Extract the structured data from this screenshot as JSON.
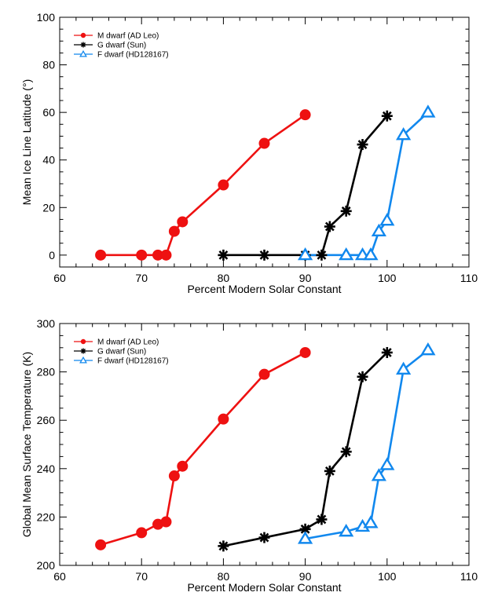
{
  "colors": {
    "m_dwarf": "#ee1111",
    "g_dwarf": "#000000",
    "f_dwarf": "#1188ee"
  },
  "chart_data": [
    {
      "type": "line",
      "title": "",
      "xlabel": "Percent Modern Solar Constant",
      "ylabel": "Mean Ice Line Latitude (°)",
      "xlim": [
        60,
        110
      ],
      "ylim": [
        -5,
        100
      ],
      "xticks": [
        60,
        70,
        80,
        90,
        100,
        110
      ],
      "yticks": [
        0,
        20,
        40,
        60,
        80,
        100
      ],
      "legend_position": "top-left",
      "grid": false,
      "series": [
        {
          "name": "M dwarf (AD Leo)",
          "marker": "circle",
          "color": "#ee1111",
          "x": [
            65,
            70,
            72,
            73,
            74,
            75,
            80,
            85,
            90
          ],
          "y": [
            0,
            0,
            0,
            0,
            10,
            14,
            29.5,
            47,
            59
          ]
        },
        {
          "name": "G dwarf (Sun)",
          "marker": "asterisk",
          "color": "#000000",
          "x": [
            80,
            85,
            90,
            92,
            93,
            95,
            97,
            100
          ],
          "y": [
            0,
            0,
            0,
            0,
            12,
            18.5,
            46.5,
            58.5
          ]
        },
        {
          "name": "F dwarf (HD128167)",
          "marker": "triangle",
          "color": "#1188ee",
          "x": [
            90,
            95,
            97,
            98,
            99,
            100,
            102,
            105
          ],
          "y": [
            0,
            0,
            0,
            0,
            10,
            14.5,
            50.5,
            60
          ]
        }
      ]
    },
    {
      "type": "line",
      "title": "",
      "xlabel": "Percent Modern Solar Constant",
      "ylabel": "Global Mean Surface Temperature (K)",
      "xlim": [
        60,
        110
      ],
      "ylim": [
        200,
        300
      ],
      "xticks": [
        60,
        70,
        80,
        90,
        100,
        110
      ],
      "yticks": [
        200,
        220,
        240,
        260,
        280,
        300
      ],
      "legend_position": "top-left",
      "grid": false,
      "series": [
        {
          "name": "M dwarf (AD Leo)",
          "marker": "circle",
          "color": "#ee1111",
          "x": [
            65,
            70,
            72,
            73,
            74,
            75,
            80,
            85,
            90
          ],
          "y": [
            208.5,
            213.5,
            217,
            218,
            237,
            241,
            260.5,
            279,
            288
          ]
        },
        {
          "name": "G dwarf (Sun)",
          "marker": "asterisk",
          "color": "#000000",
          "x": [
            80,
            85,
            90,
            92,
            93,
            95,
            97,
            100
          ],
          "y": [
            208,
            211.5,
            215,
            219,
            239,
            247,
            278,
            288
          ]
        },
        {
          "name": "F dwarf (HD128167)",
          "marker": "triangle",
          "color": "#1188ee",
          "x": [
            90,
            95,
            97,
            98,
            99,
            100,
            102,
            105
          ],
          "y": [
            211,
            214,
            216,
            217.5,
            237,
            241.5,
            281,
            289
          ]
        }
      ]
    }
  ]
}
